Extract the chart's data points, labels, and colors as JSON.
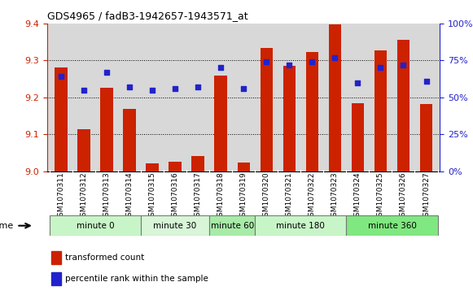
{
  "title": "GDS4965 / fadB3-1942657-1943571_at",
  "samples": [
    "GSM1070311",
    "GSM1070312",
    "GSM1070313",
    "GSM1070314",
    "GSM1070315",
    "GSM1070316",
    "GSM1070317",
    "GSM1070318",
    "GSM1070319",
    "GSM1070320",
    "GSM1070321",
    "GSM1070322",
    "GSM1070323",
    "GSM1070324",
    "GSM1070325",
    "GSM1070326",
    "GSM1070327"
  ],
  "bar_values": [
    9.28,
    9.113,
    9.227,
    9.168,
    9.02,
    9.025,
    9.04,
    9.26,
    9.023,
    9.335,
    9.285,
    9.322,
    9.398,
    9.185,
    9.328,
    9.355,
    9.183
  ],
  "percentile_values": [
    64,
    55,
    67,
    57,
    55,
    56,
    57,
    70,
    56,
    74,
    72,
    74,
    77,
    60,
    70,
    72,
    61
  ],
  "groups": [
    {
      "label": "minute 0",
      "start": 0,
      "end": 4,
      "color": "#c8f5c8"
    },
    {
      "label": "minute 30",
      "start": 4,
      "end": 7,
      "color": "#d8f5d8"
    },
    {
      "label": "minute 60",
      "start": 7,
      "end": 9,
      "color": "#a8eba8"
    },
    {
      "label": "minute 180",
      "start": 9,
      "end": 13,
      "color": "#c8f5c8"
    },
    {
      "label": "minute 360",
      "start": 13,
      "end": 17,
      "color": "#80e880"
    }
  ],
  "ylim_left": [
    9.0,
    9.4
  ],
  "ylim_right": [
    0,
    100
  ],
  "yticks_left": [
    9.0,
    9.1,
    9.2,
    9.3,
    9.4
  ],
  "yticks_right": [
    0,
    25,
    50,
    75,
    100
  ],
  "bar_color": "#cc2200",
  "dot_color": "#2222cc",
  "bar_width": 0.55,
  "grid_color": "#000000",
  "bg_color": "#d8d8d8",
  "ylabel_left_color": "#cc2200",
  "ylabel_right_color": "#2222cc",
  "xlabel_bg": "#c8c8c8"
}
